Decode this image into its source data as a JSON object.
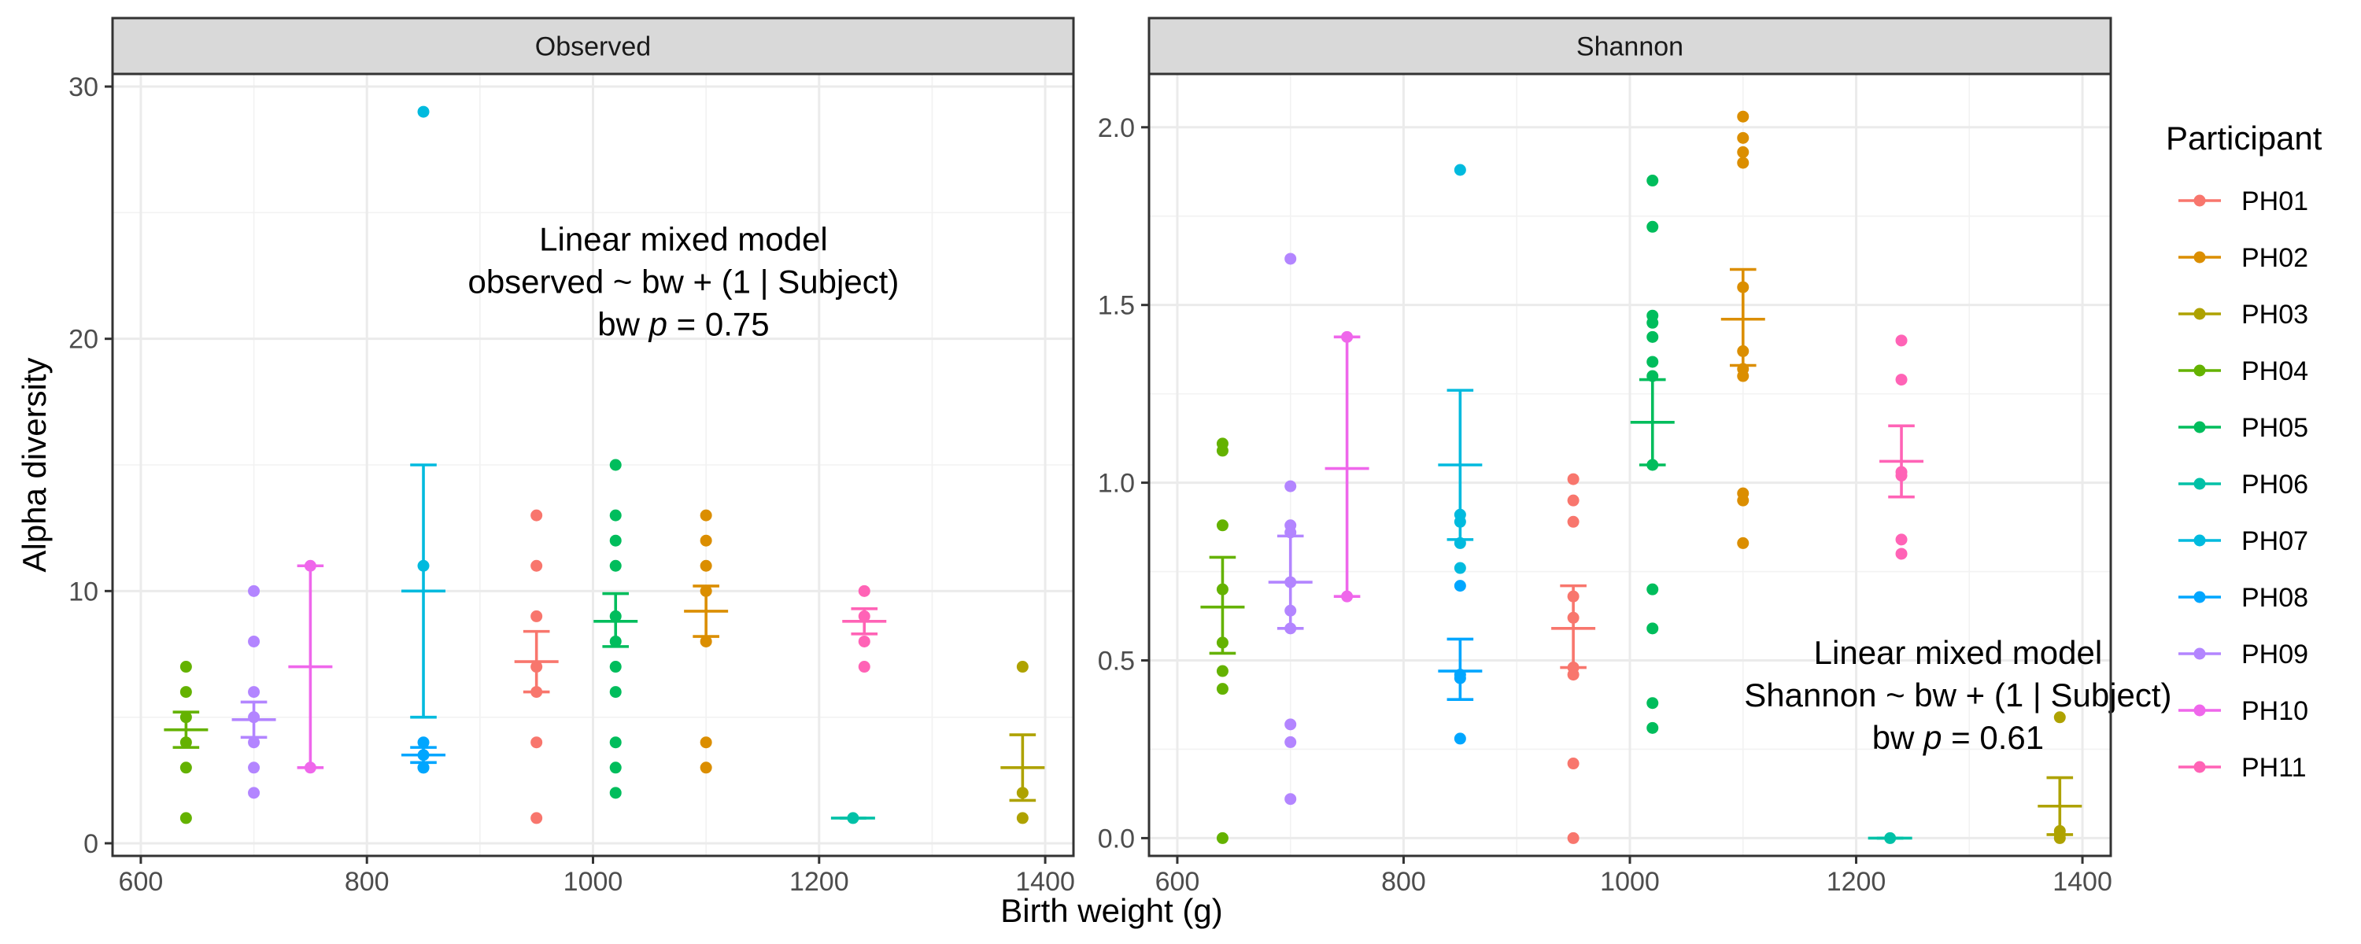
{
  "chart_data": {
    "type": "scatter",
    "xlabel": "Birth weight (g)",
    "ylabel": "Alpha diversity",
    "legend": {
      "title": "Participant",
      "position": "right"
    },
    "grid": true,
    "colors": {
      "PH01": "#F8766D",
      "PH02": "#DB8E00",
      "PH03": "#AEA200",
      "PH04": "#64B200",
      "PH05": "#00BD5C",
      "PH06": "#00C1A7",
      "PH07": "#00BADE",
      "PH08": "#00A6FF",
      "PH09": "#B385FF",
      "PH10": "#EF67EB",
      "PH11": "#FF63B6"
    },
    "participants": [
      "PH01",
      "PH02",
      "PH03",
      "PH04",
      "PH05",
      "PH06",
      "PH07",
      "PH08",
      "PH09",
      "PH10",
      "PH11"
    ],
    "panels": [
      {
        "strip": "Observed",
        "xlim": [
          575,
          1425
        ],
        "ylim": [
          -0.5,
          30.5
        ],
        "xticks": [
          600,
          800,
          1000,
          1200,
          1400
        ],
        "yticks": [
          0,
          10,
          20,
          30
        ],
        "annotation": {
          "line1": "Linear mixed model",
          "line2": "observed ~ bw + (1 | Subject)",
          "line3_pre": "bw ",
          "line3_p": "p",
          "line3_post": " = 0.75",
          "x": 1080,
          "y": 23.5
        },
        "series": [
          {
            "name": "PH01",
            "x": 950,
            "points": [
              13,
              11,
              9,
              7,
              6,
              4,
              1
            ],
            "mean": 7.2,
            "lower": 6.0,
            "upper": 8.4
          },
          {
            "name": "PH02",
            "x": 1100,
            "points": [
              13,
              12,
              11,
              10,
              8,
              4,
              3
            ],
            "mean": 9.2,
            "lower": 8.2,
            "upper": 10.2
          },
          {
            "name": "PH03",
            "x": 1380,
            "points": [
              7,
              2,
              1
            ],
            "mean": 3.0,
            "lower": 1.7,
            "upper": 4.3
          },
          {
            "name": "PH04",
            "x": 640,
            "points": [
              7,
              6,
              5,
              4,
              3,
              1
            ],
            "mean": 4.5,
            "lower": 3.8,
            "upper": 5.2
          },
          {
            "name": "PH05",
            "x": 1020,
            "points": [
              15,
              13,
              12,
              11,
              9,
              8,
              7,
              6,
              4,
              3,
              2
            ],
            "mean": 8.8,
            "lower": 7.8,
            "upper": 9.9
          },
          {
            "name": "PH06",
            "x": 1230,
            "points": [
              1
            ],
            "mean": 1.0,
            "lower": 1.0,
            "upper": 1.0
          },
          {
            "name": "PH07",
            "x": 850,
            "points": [
              29,
              11,
              3
            ],
            "mean": 10.0,
            "lower": 5.0,
            "upper": 15.0
          },
          {
            "name": "PH08",
            "x": 850,
            "points": [
              4,
              3.5,
              3
            ],
            "mean": 3.5,
            "lower": 3.2,
            "upper": 3.8
          },
          {
            "name": "PH09",
            "x": 700,
            "points": [
              10,
              8,
              6,
              5,
              4,
              3,
              2
            ],
            "mean": 4.9,
            "lower": 4.2,
            "upper": 5.6
          },
          {
            "name": "PH10",
            "x": 750,
            "points": [
              11,
              3
            ],
            "mean": 7.0,
            "lower": 3.0,
            "upper": 11.0
          },
          {
            "name": "PH11",
            "x": 1240,
            "points": [
              10,
              9,
              8,
              7
            ],
            "mean": 8.8,
            "lower": 8.3,
            "upper": 9.3
          }
        ]
      },
      {
        "strip": "Shannon",
        "xlim": [
          575,
          1425
        ],
        "ylim": [
          -0.05,
          2.15
        ],
        "xticks": [
          600,
          800,
          1000,
          1200,
          1400
        ],
        "yticks": [
          0.0,
          0.5,
          1.0,
          1.5,
          2.0
        ],
        "annotation": {
          "line1": "Linear mixed model",
          "line2": "Shannon ~ bw + (1 | Subject)",
          "line3_pre": "bw ",
          "line3_p": "p",
          "line3_post": " = 0.61",
          "x": 1290,
          "y": 0.49
        },
        "series": [
          {
            "name": "PH01",
            "x": 950,
            "points": [
              1.01,
              0.95,
              0.89,
              0.68,
              0.62,
              0.48,
              0.46,
              0.21,
              0.0
            ],
            "mean": 0.59,
            "lower": 0.48,
            "upper": 0.71
          },
          {
            "name": "PH02",
            "x": 1100,
            "points": [
              2.03,
              1.97,
              1.93,
              1.9,
              1.55,
              1.37,
              1.32,
              1.3,
              0.97,
              0.95,
              0.83
            ],
            "mean": 1.46,
            "lower": 1.33,
            "upper": 1.6
          },
          {
            "name": "PH03",
            "x": 1380,
            "points": [
              0.34,
              0.02,
              0.01,
              0.0
            ],
            "mean": 0.09,
            "lower": 0.01,
            "upper": 0.17
          },
          {
            "name": "PH04",
            "x": 640,
            "points": [
              1.11,
              1.09,
              0.88,
              0.7,
              0.55,
              0.47,
              0.42,
              0.0
            ],
            "mean": 0.65,
            "lower": 0.52,
            "upper": 0.79
          },
          {
            "name": "PH05",
            "x": 1020,
            "points": [
              1.85,
              1.72,
              1.47,
              1.45,
              1.41,
              1.34,
              1.3,
              1.05,
              0.7,
              0.59,
              0.38,
              0.31
            ],
            "mean": 1.17,
            "lower": 1.05,
            "upper": 1.29
          },
          {
            "name": "PH06",
            "x": 1230,
            "points": [
              0.0
            ],
            "mean": 0.0,
            "lower": 0.0,
            "upper": 0.0
          },
          {
            "name": "PH07",
            "x": 850,
            "points": [
              1.88,
              0.91,
              0.89,
              0.83,
              0.76
            ],
            "mean": 1.05,
            "lower": 0.84,
            "upper": 1.26
          },
          {
            "name": "PH08",
            "x": 850,
            "points": [
              0.71,
              0.46,
              0.45,
              0.28
            ],
            "mean": 0.47,
            "lower": 0.39,
            "upper": 0.56
          },
          {
            "name": "PH09",
            "x": 700,
            "points": [
              1.63,
              0.99,
              0.88,
              0.86,
              0.72,
              0.64,
              0.59,
              0.32,
              0.27,
              0.11
            ],
            "mean": 0.72,
            "lower": 0.59,
            "upper": 0.85
          },
          {
            "name": "PH10",
            "x": 750,
            "points": [
              1.41,
              0.68
            ],
            "mean": 1.04,
            "lower": 0.68,
            "upper": 1.41
          },
          {
            "name": "PH11",
            "x": 1240,
            "points": [
              1.4,
              1.29,
              1.03,
              1.02,
              0.84,
              0.8
            ],
            "mean": 1.06,
            "lower": 0.96,
            "upper": 1.16
          }
        ]
      }
    ]
  }
}
